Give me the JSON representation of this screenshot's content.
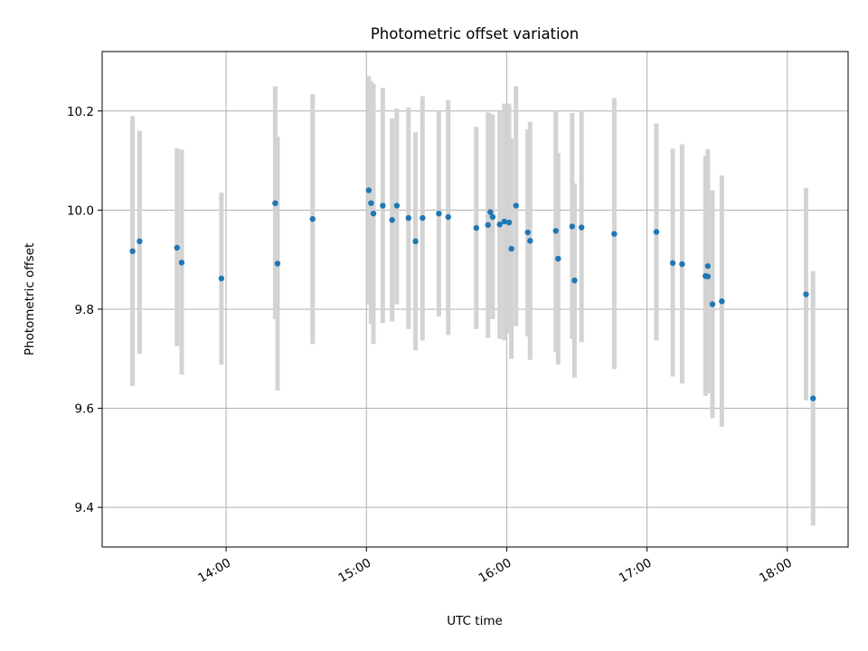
{
  "chart_data": {
    "type": "scatter",
    "title": "Photometric offset variation",
    "xlabel": "UTC time",
    "ylabel": "Photometric offset",
    "x_unit": "UTC time (HH:MM)",
    "xlim": [
      "13:07",
      "18:26"
    ],
    "ylim": [
      9.32,
      10.32
    ],
    "x_ticks": [
      "14:00",
      "15:00",
      "16:00",
      "17:00",
      "18:00"
    ],
    "y_ticks": [
      "9.4",
      "9.6",
      "9.8",
      "10.0",
      "10.2"
    ],
    "grid": true,
    "x_tick_rotation_deg": 30,
    "points": [
      {
        "t": "13:20",
        "y": 9.917,
        "low": 9.645,
        "high": 10.19
      },
      {
        "t": "13:23",
        "y": 9.937,
        "low": 9.71,
        "high": 10.16
      },
      {
        "t": "13:39",
        "y": 9.924,
        "low": 9.725,
        "high": 10.125
      },
      {
        "t": "13:41",
        "y": 9.894,
        "low": 9.668,
        "high": 10.122
      },
      {
        "t": "13:58",
        "y": 9.862,
        "low": 9.688,
        "high": 10.035
      },
      {
        "t": "14:21",
        "y": 10.014,
        "low": 9.78,
        "high": 10.25
      },
      {
        "t": "14:22",
        "y": 9.892,
        "low": 9.636,
        "high": 10.148
      },
      {
        "t": "14:37",
        "y": 9.982,
        "low": 9.73,
        "high": 10.234
      },
      {
        "t": "15:01",
        "y": 10.04,
        "low": 9.81,
        "high": 10.27
      },
      {
        "t": "15:02",
        "y": 10.014,
        "low": 9.77,
        "high": 10.26
      },
      {
        "t": "15:03",
        "y": 9.993,
        "low": 9.73,
        "high": 10.255
      },
      {
        "t": "15:07",
        "y": 10.009,
        "low": 9.772,
        "high": 10.247
      },
      {
        "t": "15:11",
        "y": 9.98,
        "low": 9.775,
        "high": 10.185
      },
      {
        "t": "15:13",
        "y": 10.009,
        "low": 9.81,
        "high": 10.205
      },
      {
        "t": "15:18",
        "y": 9.984,
        "low": 9.76,
        "high": 10.207
      },
      {
        "t": "15:21",
        "y": 9.937,
        "low": 9.717,
        "high": 10.157
      },
      {
        "t": "15:24",
        "y": 9.984,
        "low": 9.737,
        "high": 10.23
      },
      {
        "t": "15:31",
        "y": 9.993,
        "low": 9.785,
        "high": 10.2
      },
      {
        "t": "15:35",
        "y": 9.986,
        "low": 9.748,
        "high": 10.222
      },
      {
        "t": "15:47",
        "y": 9.964,
        "low": 9.76,
        "high": 10.168
      },
      {
        "t": "15:52",
        "y": 9.97,
        "low": 9.742,
        "high": 10.197
      },
      {
        "t": "15:53",
        "y": 9.996,
        "low": 9.8,
        "high": 10.195
      },
      {
        "t": "15:54",
        "y": 9.986,
        "low": 9.78,
        "high": 10.193
      },
      {
        "t": "15:57",
        "y": 9.971,
        "low": 9.74,
        "high": 10.2
      },
      {
        "t": "15:59",
        "y": 9.977,
        "low": 9.737,
        "high": 10.215
      },
      {
        "t": "16:01",
        "y": 9.975,
        "low": 9.75,
        "high": 10.215
      },
      {
        "t": "16:02",
        "y": 9.922,
        "low": 9.7,
        "high": 10.145
      },
      {
        "t": "16:04",
        "y": 10.009,
        "low": 9.766,
        "high": 10.25
      },
      {
        "t": "16:09",
        "y": 9.955,
        "low": 9.745,
        "high": 10.163
      },
      {
        "t": "16:10",
        "y": 9.938,
        "low": 9.698,
        "high": 10.178
      },
      {
        "t": "16:21",
        "y": 9.958,
        "low": 9.714,
        "high": 10.2
      },
      {
        "t": "16:22",
        "y": 9.902,
        "low": 9.688,
        "high": 10.115
      },
      {
        "t": "16:28",
        "y": 9.967,
        "low": 9.74,
        "high": 10.196
      },
      {
        "t": "16:29",
        "y": 9.858,
        "low": 9.662,
        "high": 10.054
      },
      {
        "t": "16:32",
        "y": 9.965,
        "low": 9.733,
        "high": 10.2
      },
      {
        "t": "16:46",
        "y": 9.952,
        "low": 9.679,
        "high": 10.226
      },
      {
        "t": "17:04",
        "y": 9.956,
        "low": 9.737,
        "high": 10.175
      },
      {
        "t": "17:11",
        "y": 9.893,
        "low": 9.664,
        "high": 10.124
      },
      {
        "t": "17:15",
        "y": 9.891,
        "low": 9.65,
        "high": 10.133
      },
      {
        "t": "17:25",
        "y": 9.867,
        "low": 9.625,
        "high": 10.11
      },
      {
        "t": "17:26",
        "y": 9.866,
        "low": 9.63,
        "high": 10.1
      },
      {
        "t": "17:26",
        "y": 9.887,
        "low": 9.65,
        "high": 10.123
      },
      {
        "t": "17:28",
        "y": 9.81,
        "low": 9.58,
        "high": 10.04
      },
      {
        "t": "17:32",
        "y": 9.816,
        "low": 9.563,
        "high": 10.07
      },
      {
        "t": "18:08",
        "y": 9.83,
        "low": 9.616,
        "high": 10.045
      },
      {
        "t": "18:11",
        "y": 9.62,
        "low": 9.363,
        "high": 9.877
      }
    ],
    "colors": {
      "point": "#1f77b4",
      "errorbar": "#d3d3d3",
      "grid": "#b0b0b0",
      "axes": "#000000"
    }
  }
}
